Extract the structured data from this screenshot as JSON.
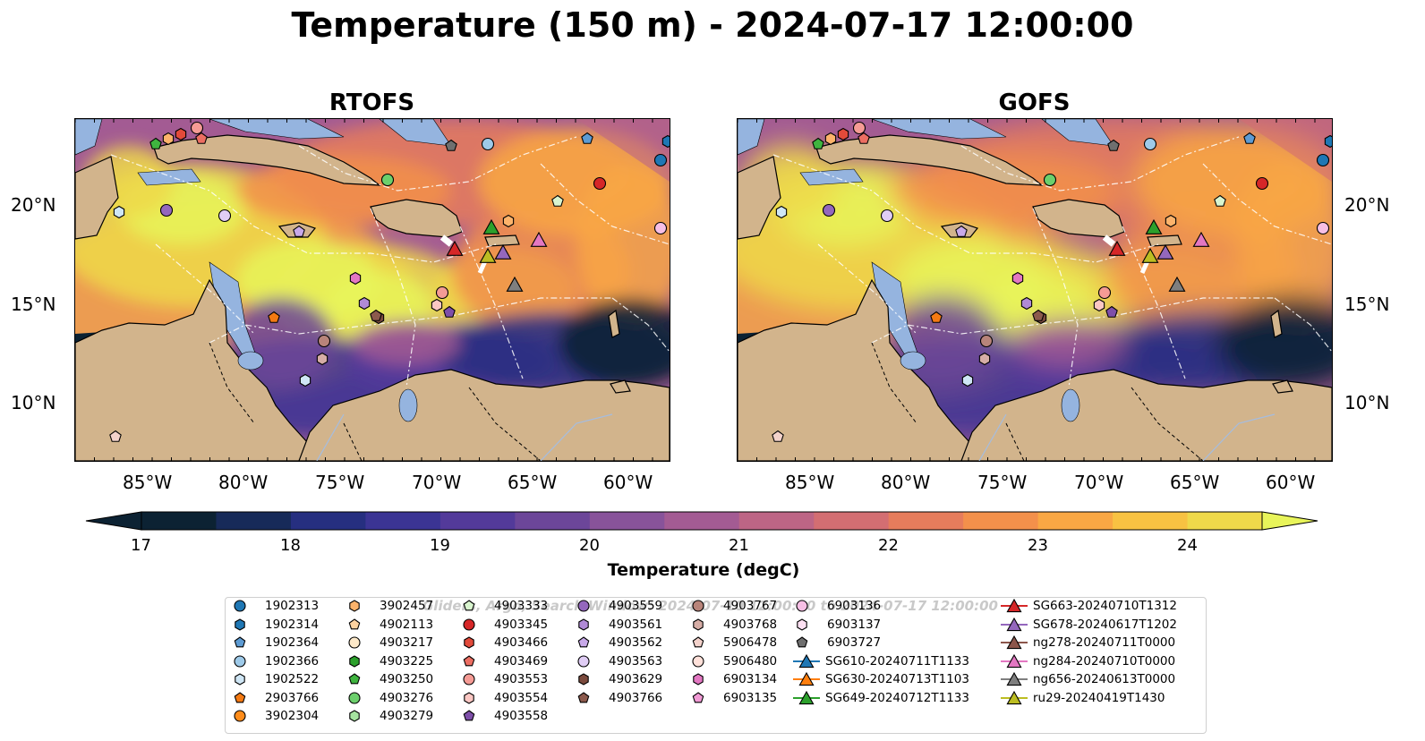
{
  "title": "Temperature (150 m) - 2024-07-17 12:00:00",
  "panels": [
    {
      "title": "RTOFS",
      "x_ticks": [
        "85°W",
        "80°W",
        "75°W",
        "70°W",
        "65°W",
        "60°W"
      ],
      "y_ticks": [
        "20°N",
        "15°N",
        "10°N"
      ]
    },
    {
      "title": "GOFS",
      "x_ticks": [
        "85°W",
        "80°W",
        "75°W",
        "70°W",
        "65°W",
        "60°W"
      ],
      "y_ticks": [
        "20°N",
        "15°N",
        "10°N"
      ]
    }
  ],
  "colorbar": {
    "label": "Temperature (degC)",
    "ticks": [
      "17",
      "18",
      "19",
      "20",
      "21",
      "22",
      "23",
      "24"
    ],
    "range": [
      17,
      24.5
    ],
    "colors": [
      "#0c2233",
      "#172a59",
      "#262f80",
      "#3b3494",
      "#533a9a",
      "#6c4699",
      "#88539a",
      "#a35b93",
      "#bd6585",
      "#d36e72",
      "#e67c5c",
      "#f3904b",
      "#f9a744",
      "#f8c242",
      "#efd94a",
      "#e8f45a"
    ]
  },
  "legend": {
    "watermark": "Gliders, Argo, Search Window: 2024-07-10 12:00:00 to 2024-07-17 12:00:00",
    "columns": [
      [
        {
          "label": "1902313",
          "marker": "circle",
          "color": "#1f77b4"
        },
        {
          "label": "1902314",
          "marker": "hexagon",
          "color": "#1f77b4"
        },
        {
          "label": "1902364",
          "marker": "pentagon",
          "color": "#5d9bd3"
        },
        {
          "label": "1902366",
          "marker": "circle",
          "color": "#9ecae9"
        },
        {
          "label": "1902522",
          "marker": "hexagon",
          "color": "#cfe6f5"
        },
        {
          "label": "2903766",
          "marker": "pentagon",
          "color": "#f47a13"
        },
        {
          "label": "3902304",
          "marker": "circle",
          "color": "#ff8c1a"
        }
      ],
      [
        {
          "label": "3902457",
          "marker": "hexagon",
          "color": "#fdb36b"
        },
        {
          "label": "4902113",
          "marker": "pentagon",
          "color": "#fdd2a0"
        },
        {
          "label": "4903217",
          "marker": "circle",
          "color": "#fde9c9"
        },
        {
          "label": "4903225",
          "marker": "hexagon",
          "color": "#2ca02c"
        },
        {
          "label": "4903250",
          "marker": "pentagon",
          "color": "#3fb43f"
        },
        {
          "label": "4903276",
          "marker": "circle",
          "color": "#6ccf6c"
        },
        {
          "label": "4903279",
          "marker": "hexagon",
          "color": "#a6e3a0"
        }
      ],
      [
        {
          "label": "4903333",
          "marker": "pentagon",
          "color": "#d9f5cf"
        },
        {
          "label": "4903345",
          "marker": "circle",
          "color": "#d62728"
        },
        {
          "label": "4903466",
          "marker": "hexagon",
          "color": "#e24a3a"
        },
        {
          "label": "4903469",
          "marker": "pentagon",
          "color": "#ec6e62"
        },
        {
          "label": "4903553",
          "marker": "circle",
          "color": "#f59b95"
        },
        {
          "label": "4903554",
          "marker": "hexagon",
          "color": "#fbc7c3"
        },
        {
          "label": "4903558",
          "marker": "pentagon",
          "color": "#7e4fa9"
        }
      ],
      [
        {
          "label": "4903559",
          "marker": "circle",
          "color": "#9467bd"
        },
        {
          "label": "4903561",
          "marker": "hexagon",
          "color": "#b08ad6"
        },
        {
          "label": "4903562",
          "marker": "pentagon",
          "color": "#c8a9e9"
        },
        {
          "label": "4903563",
          "marker": "circle",
          "color": "#e0cdf5"
        },
        {
          "label": "4903629",
          "marker": "hexagon",
          "color": "#7b4a3d"
        },
        {
          "label": "4903766",
          "marker": "pentagon",
          "color": "#8c5a4d"
        }
      ],
      [
        {
          "label": "4903767",
          "marker": "circle",
          "color": "#b8847a"
        },
        {
          "label": "4903768",
          "marker": "hexagon",
          "color": "#d6ada6"
        },
        {
          "label": "5906478",
          "marker": "pentagon",
          "color": "#f3d2cb"
        },
        {
          "label": "5906480",
          "marker": "circle",
          "color": "#ffe1da"
        },
        {
          "label": "6903134",
          "marker": "hexagon",
          "color": "#e377c2"
        },
        {
          "label": "6903135",
          "marker": "pentagon",
          "color": "#f19ad5"
        }
      ],
      [
        {
          "label": "6903136",
          "marker": "circle",
          "color": "#f7bfe5"
        },
        {
          "label": "6903137",
          "marker": "hexagon",
          "color": "#fde0f2"
        },
        {
          "label": "6903727",
          "marker": "pentagon",
          "color": "#6f6f6f"
        },
        {
          "label": "SG610-20240711T1133",
          "marker": "triangle-line",
          "color": "#1f77b4"
        },
        {
          "label": "SG630-20240713T1103",
          "marker": "triangle-line",
          "color": "#ff7f0e"
        },
        {
          "label": "SG649-20240712T1133",
          "marker": "triangle-line",
          "color": "#2ca02c"
        }
      ],
      [
        {
          "label": "SG663-20240710T1312",
          "marker": "triangle-line",
          "color": "#d62728"
        },
        {
          "label": "SG678-20240617T1202",
          "marker": "triangle-line",
          "color": "#9467bd"
        },
        {
          "label": "ng278-20240711T0000",
          "marker": "triangle-line",
          "color": "#8c564b"
        },
        {
          "label": "ng284-20240710T0000",
          "marker": "triangle-line",
          "color": "#e377c2"
        },
        {
          "label": "ng656-20240613T0000",
          "marker": "triangle-line",
          "color": "#7f7f7f"
        },
        {
          "label": "ru29-20240419T1430",
          "marker": "triangle-line",
          "color": "#bcbd22"
        }
      ]
    ]
  }
}
